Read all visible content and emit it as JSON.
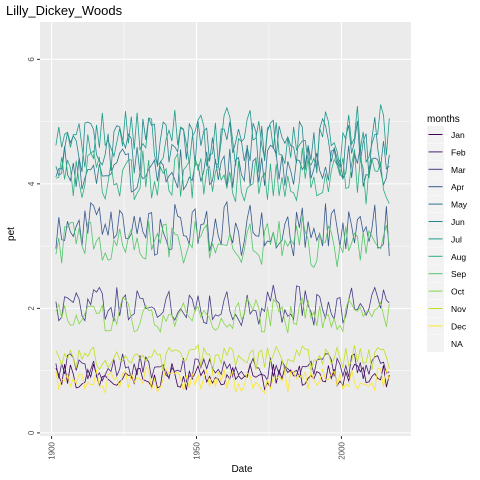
{
  "chart_data": {
    "type": "line",
    "title": "Lilly_Dickey_Woods",
    "xlabel": "Date",
    "ylabel": "pet",
    "xlim": [
      1896,
      2024
    ],
    "ylim": [
      -0.05,
      6.6
    ],
    "x_ticks": [
      1900,
      1950,
      2000
    ],
    "y_ticks": [
      0,
      2,
      4,
      6
    ],
    "x_tick_labels": [
      "1900",
      "1950",
      "2000"
    ],
    "y_tick_labels": [
      "0",
      "2",
      "4",
      "6"
    ],
    "grid": true,
    "legend": {
      "title": "months",
      "position": "right",
      "entries": [
        "Jan",
        "Feb",
        "Mar",
        "Apr",
        "May",
        "Jun",
        "Jul",
        "Aug",
        "Sep",
        "Oct",
        "Nov",
        "Dec",
        "NA"
      ]
    },
    "series": [
      {
        "name": "Jan",
        "color": "#440154",
        "year_start": 1901,
        "year_end": 2016,
        "mean": 0.9,
        "spread": 0.18
      },
      {
        "name": "Feb",
        "color": "#482173",
        "year_start": 1901,
        "year_end": 2016,
        "mean": 1.05,
        "spread": 0.2
      },
      {
        "name": "Mar",
        "color": "#433E85",
        "year_start": 1901,
        "year_end": 2016,
        "mean": 2.05,
        "spread": 0.3
      },
      {
        "name": "Apr",
        "color": "#38598C",
        "year_start": 1901,
        "year_end": 2016,
        "mean": 3.25,
        "spread": 0.4
      },
      {
        "name": "May",
        "color": "#2D708E",
        "year_start": 1901,
        "year_end": 2016,
        "mean": 4.25,
        "spread": 0.38
      },
      {
        "name": "Jun",
        "color": "#25858E",
        "year_start": 1901,
        "year_end": 2016,
        "mean": 4.6,
        "spread": 0.45
      },
      {
        "name": "Jul",
        "color": "#1E9B8A",
        "year_start": 1901,
        "year_end": 2016,
        "mean": 4.75,
        "spread": 0.45
      },
      {
        "name": "Aug",
        "color": "#2BB07F",
        "year_start": 1901,
        "year_end": 2016,
        "mean": 4.1,
        "spread": 0.4
      },
      {
        "name": "Sep",
        "color": "#51C56A",
        "year_start": 1901,
        "year_end": 2016,
        "mean": 3.05,
        "spread": 0.35
      },
      {
        "name": "Oct",
        "color": "#85D54A",
        "year_start": 1901,
        "year_end": 2016,
        "mean": 1.9,
        "spread": 0.25
      },
      {
        "name": "Nov",
        "color": "#C2DF23",
        "year_start": 1901,
        "year_end": 2016,
        "mean": 1.2,
        "spread": 0.2
      },
      {
        "name": "Dec",
        "color": "#FDE725",
        "year_start": 1901,
        "year_end": 2016,
        "mean": 0.85,
        "spread": 0.18
      },
      {
        "name": "NA",
        "color": "#7F7F7F",
        "year_start": 1901,
        "year_end": 2016,
        "mean": null,
        "spread": null
      }
    ],
    "colors": {
      "panel_background": "#EBEBEB",
      "grid_major": "#FFFFFF",
      "tick_text": "#4D4D4D"
    }
  }
}
